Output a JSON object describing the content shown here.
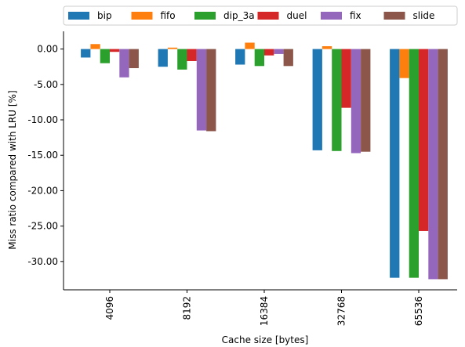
{
  "chart_data": {
    "type": "bar",
    "title": "",
    "xlabel": "Cache size [bytes]",
    "ylabel": "Miss ratio compared with LRU [%]",
    "categories": [
      "4096",
      "8192",
      "16384",
      "32768",
      "65536"
    ],
    "ylim": [
      -34,
      2.5
    ],
    "yticks": [
      0,
      -5,
      -10,
      -15,
      -20,
      -25,
      -30
    ],
    "ytick_labels": [
      "0.00",
      "-5.00",
      "-10.00",
      "-15.00",
      "-20.00",
      "-25.00",
      "-30.00"
    ],
    "grid": false,
    "legend_position": "top, above plot, one row",
    "series": [
      {
        "name": "bip",
        "color": "#1f77b4",
        "values": [
          -1.2,
          -2.5,
          -2.2,
          -14.3,
          -32.3
        ]
      },
      {
        "name": "fifo",
        "color": "#ff7f0e",
        "values": [
          0.7,
          0.2,
          0.9,
          0.4,
          -4.1
        ]
      },
      {
        "name": "dip_3a",
        "color": "#2ca02c",
        "values": [
          -2.0,
          -2.9,
          -2.4,
          -14.4,
          -32.3
        ]
      },
      {
        "name": "duel",
        "color": "#d62728",
        "values": [
          -0.4,
          -1.7,
          -0.9,
          -8.3,
          -25.7
        ]
      },
      {
        "name": "fix",
        "color": "#9467bd",
        "values": [
          -4.0,
          -11.5,
          -0.7,
          -14.7,
          -32.5
        ]
      },
      {
        "name": "slide",
        "color": "#8c564b",
        "values": [
          -2.7,
          -11.6,
          -2.4,
          -14.5,
          -32.5
        ]
      }
    ]
  }
}
